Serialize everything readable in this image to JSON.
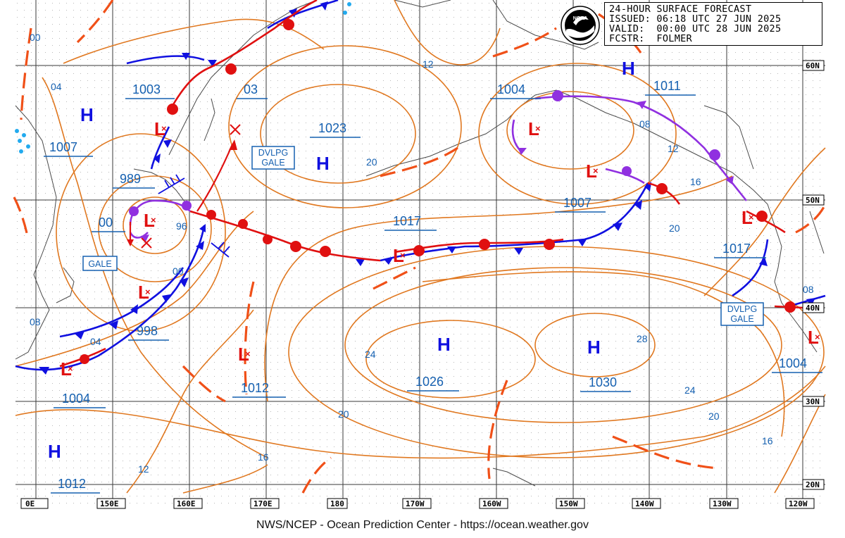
{
  "title": {
    "line1": "24-HOUR SURFACE FORECAST",
    "line2": "ISSUED: 06:18 UTC 27 JUN 2025",
    "line3": "VALID:  00:00 UTC 28 JUN 2025",
    "line4": "FCSTR:  FOLMER"
  },
  "footer": "NWS/NCEP - Ocean Prediction Center - https://ocean.weather.gov",
  "logo_text": "NOAA",
  "colors": {
    "isobar": "#e07820",
    "isobar_label": "#1560b0",
    "cold_front": "#1010e0",
    "warm_front": "#e01010",
    "occluded_front": "#9030e0",
    "high_symbol": "#1010e0",
    "low_symbol": "#e01010",
    "trough": "#f05018",
    "grid": "#404040",
    "coast": "#505050"
  },
  "latitude_labels": [
    "60N",
    "50N",
    "40N",
    "30N",
    "20N"
  ],
  "longitude_labels": [
    "0E",
    "150E",
    "160E",
    "170E",
    "180",
    "170W",
    "160W",
    "150W",
    "140W",
    "130W",
    "120W"
  ],
  "pressure_labels": [
    "1003",
    "1007",
    "989",
    "00",
    "998",
    "1004",
    "1012",
    "03",
    "1023",
    "1017",
    "1012",
    "1026",
    "1004",
    "1011",
    "1007",
    "1030",
    "1017",
    "1004"
  ],
  "contour_labels": [
    "00",
    "04",
    "96",
    "00",
    "04",
    "08",
    "12",
    "20",
    "24",
    "20",
    "16",
    "12",
    "08",
    "12",
    "16",
    "20",
    "28",
    "24",
    "20",
    "16",
    "08"
  ],
  "warnings": [
    "DVLPG\nGALE",
    "GALE",
    "DVLPG\nGALE"
  ],
  "symbols": {
    "high": "H",
    "low": "L",
    "low_center": "×"
  }
}
